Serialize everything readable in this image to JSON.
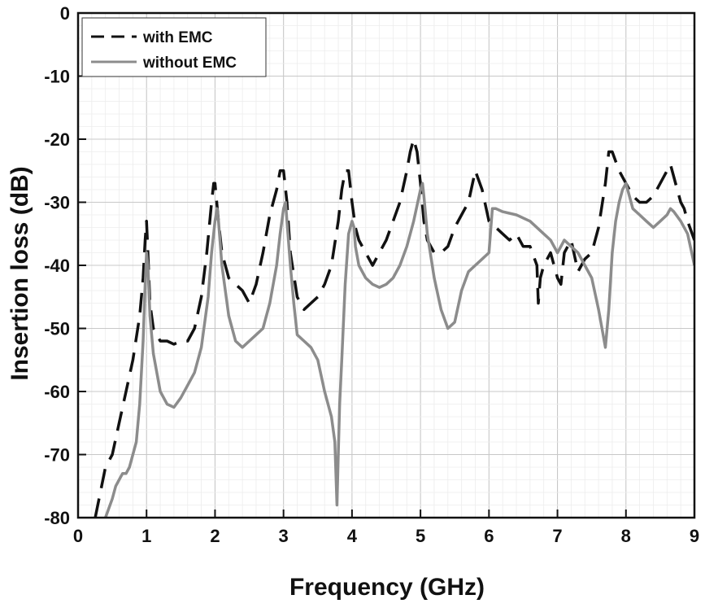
{
  "chart_data": {
    "type": "line",
    "xlabel": "Frequency (GHz)",
    "ylabel": "Insertion loss (dB)",
    "xlim": [
      0,
      9
    ],
    "ylim": [
      -80,
      0
    ],
    "xticks": [
      "0",
      "1",
      "2",
      "3",
      "4",
      "5",
      "6",
      "7",
      "8",
      "9"
    ],
    "yticks": [
      "0",
      "-10",
      "-20",
      "-30",
      "-40",
      "-50",
      "-60",
      "-70",
      "-80"
    ],
    "grid": true,
    "legend": "top-left",
    "series": [
      {
        "name": "with EMC",
        "color": "#111111",
        "style": "dashed",
        "x": [
          0.25,
          0.4,
          0.5,
          0.6,
          0.7,
          0.8,
          0.9,
          0.95,
          0.98,
          1.0,
          1.02,
          1.05,
          1.1,
          1.2,
          1.3,
          1.4,
          1.5,
          1.6,
          1.7,
          1.8,
          1.88,
          1.95,
          1.98,
          2.0,
          2.05,
          2.1,
          2.2,
          2.3,
          2.4,
          2.5,
          2.6,
          2.7,
          2.8,
          2.9,
          2.95,
          3.0,
          3.05,
          3.1,
          3.2,
          3.3,
          3.4,
          3.5,
          3.6,
          3.7,
          3.8,
          3.85,
          3.9,
          3.95,
          4.0,
          4.05,
          4.1,
          4.2,
          4.3,
          4.4,
          4.5,
          4.6,
          4.7,
          4.8,
          4.85,
          4.9,
          4.95,
          5.0,
          5.05,
          5.1,
          5.2,
          5.3,
          5.4,
          5.5,
          5.6,
          5.7,
          5.8,
          5.9,
          6.0,
          6.1,
          6.2,
          6.3,
          6.4,
          6.5,
          6.6,
          6.7,
          6.72,
          6.75,
          6.8,
          6.9,
          7.0,
          7.05,
          7.1,
          7.2,
          7.3,
          7.4,
          7.5,
          7.6,
          7.7,
          7.75,
          7.8,
          7.9,
          8.0,
          8.1,
          8.2,
          8.3,
          8.4,
          8.5,
          8.6,
          8.65,
          8.7,
          8.75,
          8.8,
          8.85,
          8.9,
          9.0
        ],
        "y": [
          -80,
          -72,
          -70,
          -65,
          -60,
          -55,
          -48,
          -42,
          -36,
          -33,
          -38,
          -46,
          -50,
          -52,
          -52,
          -52.5,
          -52,
          -52,
          -50,
          -45,
          -38,
          -30,
          -27,
          -27,
          -33,
          -38,
          -42,
          -43,
          -44,
          -46,
          -43,
          -38,
          -32,
          -28,
          -25,
          -25,
          -30,
          -38,
          -45,
          -47,
          -46,
          -45,
          -43,
          -40,
          -33,
          -28,
          -25,
          -25,
          -30,
          -34,
          -36,
          -38,
          -40,
          -38,
          -36,
          -33,
          -30,
          -25,
          -22,
          -20,
          -22,
          -27,
          -33,
          -36,
          -38,
          -38,
          -37,
          -34,
          -32,
          -30,
          -25,
          -28,
          -33,
          -34,
          -35,
          -36,
          -35,
          -37,
          -37,
          -40,
          -46,
          -42,
          -40,
          -38,
          -42,
          -43,
          -38,
          -36,
          -41,
          -39,
          -38,
          -34,
          -27,
          -22,
          -22,
          -25,
          -27,
          -29,
          -30,
          -30,
          -29,
          -27,
          -25,
          -24,
          -26,
          -28,
          -30,
          -31,
          -33,
          -36
        ]
      },
      {
        "name": "without EMC",
        "color": "#8c8c8c",
        "style": "solid",
        "x": [
          0.4,
          0.5,
          0.55,
          0.6,
          0.65,
          0.7,
          0.75,
          0.8,
          0.85,
          0.9,
          0.95,
          0.98,
          1.0,
          1.02,
          1.05,
          1.1,
          1.2,
          1.3,
          1.4,
          1.5,
          1.6,
          1.7,
          1.8,
          1.9,
          1.95,
          2.0,
          2.03,
          2.05,
          2.1,
          2.2,
          2.3,
          2.4,
          2.5,
          2.6,
          2.7,
          2.8,
          2.9,
          2.95,
          3.0,
          3.03,
          3.05,
          3.1,
          3.15,
          3.2,
          3.3,
          3.4,
          3.5,
          3.6,
          3.7,
          3.75,
          3.78,
          3.8,
          3.82,
          3.85,
          3.9,
          3.95,
          4.0,
          4.03,
          4.05,
          4.1,
          4.2,
          4.3,
          4.4,
          4.5,
          4.6,
          4.7,
          4.8,
          4.9,
          5.0,
          5.03,
          5.05,
          5.1,
          5.2,
          5.3,
          5.4,
          5.5,
          5.6,
          5.7,
          5.8,
          5.9,
          6.0,
          6.05,
          6.1,
          6.2,
          6.4,
          6.6,
          6.8,
          6.9,
          7.0,
          7.1,
          7.2,
          7.3,
          7.4,
          7.5,
          7.6,
          7.65,
          7.7,
          7.75,
          7.8,
          7.85,
          7.9,
          7.95,
          8.0,
          8.1,
          8.2,
          8.3,
          8.4,
          8.5,
          8.6,
          8.65,
          8.7,
          8.8,
          8.9,
          9.0
        ],
        "y": [
          -80,
          -77,
          -75,
          -74,
          -73,
          -73,
          -72,
          -70,
          -68,
          -62,
          -52,
          -43,
          -38,
          -40,
          -48,
          -54,
          -60,
          -62,
          -62.5,
          -61,
          -59,
          -57,
          -53,
          -45,
          -38,
          -33,
          -31,
          -33,
          -40,
          -48,
          -52,
          -53,
          -52,
          -51,
          -50,
          -46,
          -40,
          -35,
          -31,
          -30,
          -33,
          -40,
          -46,
          -51,
          -52,
          -53,
          -55,
          -60,
          -64,
          -68,
          -78,
          -70,
          -62,
          -55,
          -43,
          -35,
          -33,
          -34,
          -37,
          -40,
          -42,
          -43,
          -43.5,
          -43,
          -42,
          -40,
          -37,
          -33,
          -28,
          -27,
          -29,
          -35,
          -42,
          -47,
          -50,
          -49,
          -44,
          -41,
          -40,
          -39,
          -38,
          -31,
          -31,
          -31.5,
          -32,
          -33,
          -35,
          -36,
          -38,
          -36,
          -37,
          -38,
          -40,
          -42,
          -47,
          -50,
          -53,
          -47,
          -38,
          -33,
          -30,
          -28,
          -27,
          -31,
          -32,
          -33,
          -34,
          -33,
          -32,
          -31,
          -31.5,
          -33,
          -35,
          -40
        ]
      }
    ]
  }
}
